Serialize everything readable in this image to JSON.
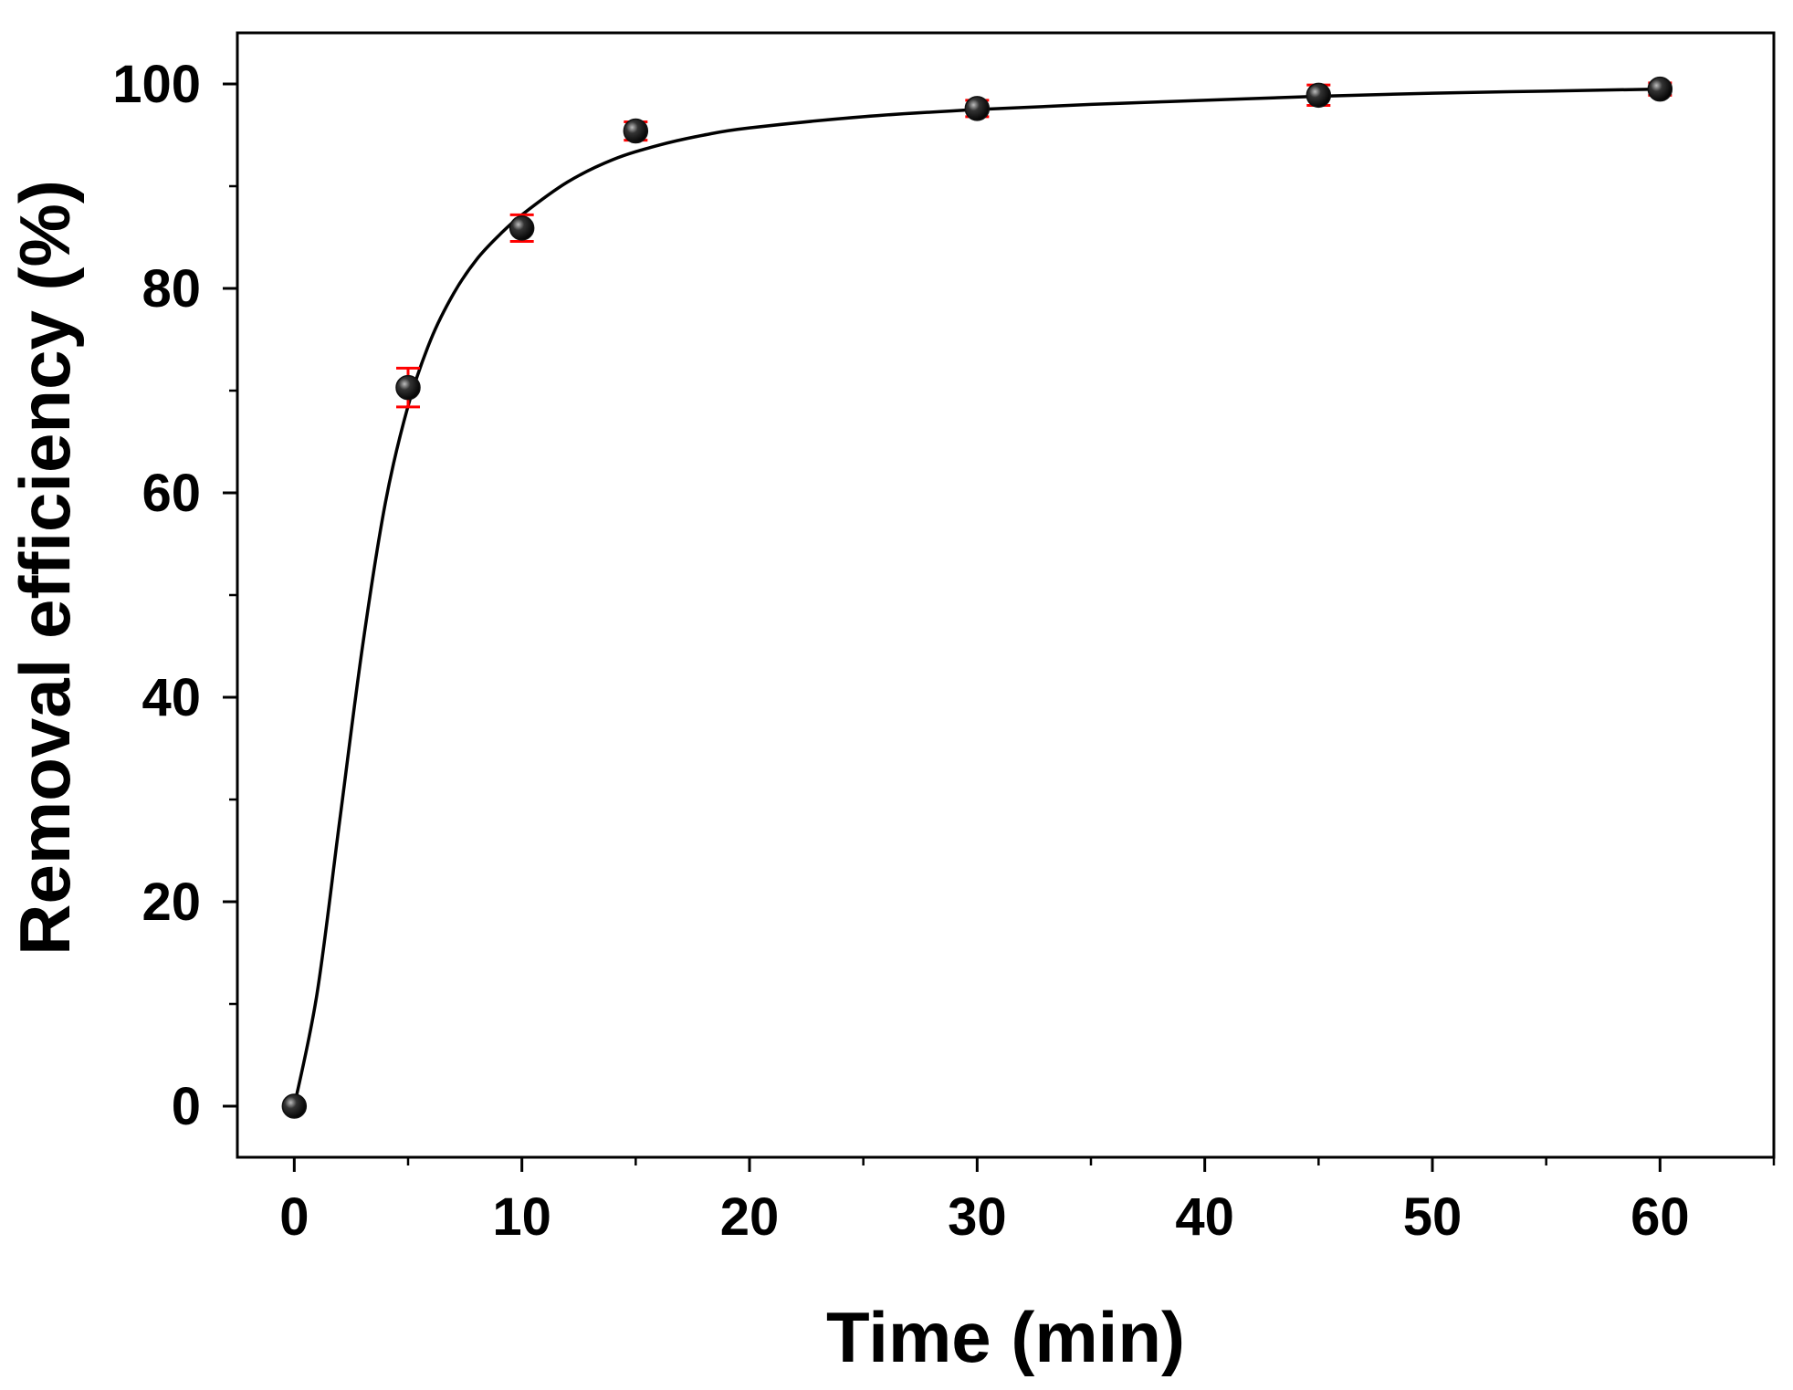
{
  "chart_data": {
    "type": "scatter",
    "title": "",
    "xlabel": "Time (min)",
    "ylabel": "Removal efficiency (%)",
    "xlim": [
      -2.5,
      65
    ],
    "ylim": [
      -5,
      105
    ],
    "xticks": [
      0,
      10,
      20,
      30,
      40,
      50,
      60
    ],
    "yticks": [
      0,
      20,
      40,
      60,
      80,
      100
    ],
    "grid": false,
    "series": [
      {
        "kind": "scatter-errorbar",
        "x": [
          0,
          5,
          10,
          15,
          30,
          45,
          60
        ],
        "y": [
          0,
          70.3,
          85.9,
          95.4,
          97.6,
          98.9,
          99.5
        ],
        "yerr": [
          0,
          1.9,
          1.3,
          0.9,
          0.8,
          1.0,
          0.6
        ],
        "marker_color": "#111111",
        "error_color": "#ff0000"
      },
      {
        "kind": "fitted-curve",
        "x": [
          0,
          1,
          2,
          3,
          4,
          5,
          6,
          7,
          8,
          9,
          10,
          12,
          14,
          16,
          18,
          20,
          25,
          30,
          35,
          40,
          45,
          50,
          55,
          60
        ],
        "y": [
          0,
          11,
          28,
          45,
          59,
          68.5,
          75,
          79.5,
          82.8,
          85.2,
          87.2,
          90.4,
          92.6,
          94.0,
          95.0,
          95.7,
          96.8,
          97.5,
          98.0,
          98.4,
          98.8,
          99.1,
          99.3,
          99.5
        ],
        "line_color": "#000000"
      }
    ]
  }
}
